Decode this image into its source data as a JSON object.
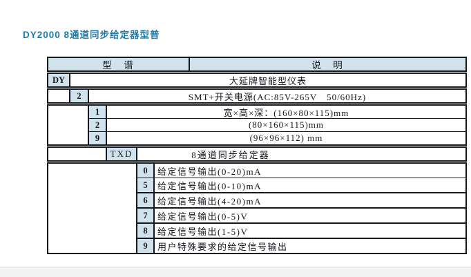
{
  "title": "DY2000 8通道同步给定器型普",
  "colors": {
    "title_accent": "#1d7ba8",
    "key_cell_bg": "#d0e3ec",
    "border": "#15181c"
  },
  "table": {
    "header": {
      "model_spectrum": "型　谱",
      "description": "说　明"
    },
    "groups": [
      {
        "name": "brand",
        "rows": [
          {
            "code": "DY",
            "desc": "大延牌智能型仪表"
          }
        ]
      },
      {
        "name": "power",
        "rows": [
          {
            "code": "2",
            "desc": "SMT+开关电源(AC:85V-265V　50/60Hz)"
          }
        ]
      },
      {
        "name": "dimensions",
        "rows": [
          {
            "code": "1",
            "desc": "宽×高×深：(160×80×115)mm"
          },
          {
            "code": "2",
            "desc": "(80×160×115)mm"
          },
          {
            "code": "9",
            "desc": "(96×96×112) mm"
          }
        ]
      },
      {
        "name": "function",
        "rows": [
          {
            "code": "TXD",
            "desc": "8通道同步给定器"
          }
        ]
      },
      {
        "name": "outputs",
        "rows": [
          {
            "code": "0",
            "desc": "给定信号输出(0-20)mA"
          },
          {
            "code": "5",
            "desc": "给定信号输出(0-10)mA"
          },
          {
            "code": "6",
            "desc": "给定信号输出(4-20)mA"
          },
          {
            "code": "7",
            "desc": "给定信号输出(0-5)V"
          },
          {
            "code": "8",
            "desc": "给定信号输出(1-5)V"
          },
          {
            "code": "9",
            "desc": "用户特殊要求的给定信号输出"
          }
        ]
      }
    ]
  }
}
